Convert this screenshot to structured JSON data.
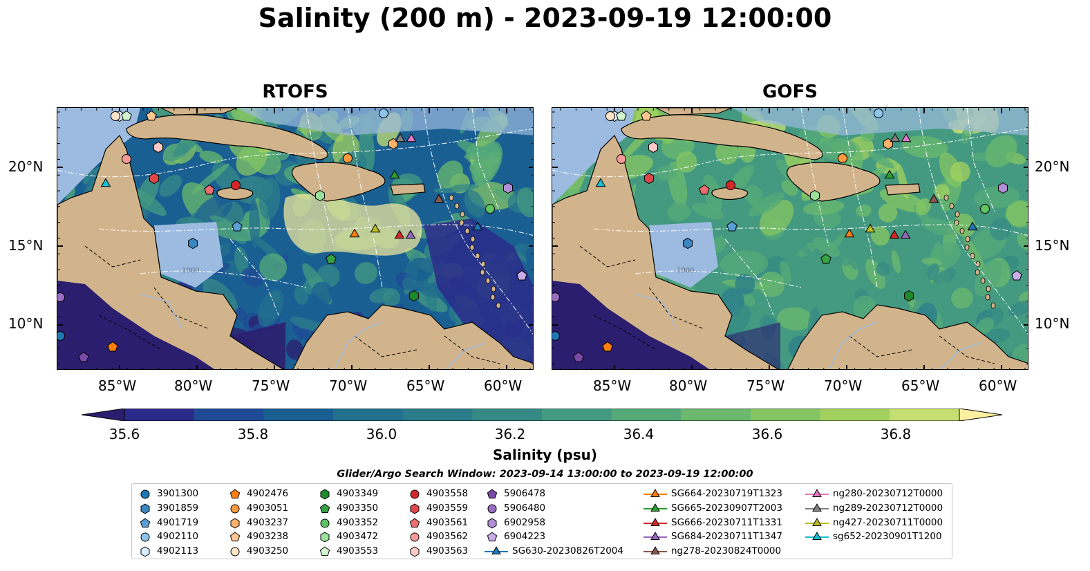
{
  "title": "Salinity (200 m) - 2023-09-19 12:00:00",
  "panels": [
    {
      "title": "RTOFS"
    },
    {
      "title": "GOFS"
    }
  ],
  "axes": {
    "x_ticks": [
      "85°W",
      "80°W",
      "75°W",
      "70°W",
      "65°W",
      "60°W"
    ],
    "y_ticks_left": [
      "20°N",
      "15°N",
      "10°N"
    ],
    "y_ticks_right": [
      "20°N",
      "15°N",
      "10°N"
    ]
  },
  "colorbar": {
    "ticks": [
      "35.6",
      "35.8",
      "36.0",
      "36.2",
      "36.4",
      "36.6",
      "36.8"
    ],
    "label": "Salinity (psu)",
    "colors": [
      "#2c1e6f",
      "#2a2a8a",
      "#1f4a95",
      "#1a5f92",
      "#236f8e",
      "#2b7c8b",
      "#358a86",
      "#449a80",
      "#56a978",
      "#6bb86e",
      "#85c563",
      "#a3d15f",
      "#c6df72",
      "#fbf0a0"
    ]
  },
  "search_window": "Glider/Argo Search Window: 2023-09-14 13:00:00 to 2023-09-19 12:00:00",
  "legend": {
    "columns": [
      [
        {
          "label": "3901300",
          "shape": "circle",
          "color": "#1f77b4"
        },
        {
          "label": "3901859",
          "shape": "hexagon",
          "color": "#3a86c1"
        },
        {
          "label": "4901719",
          "shape": "pentagon",
          "color": "#5a9fd4"
        },
        {
          "label": "4902110",
          "shape": "circle",
          "color": "#8cc4ec"
        },
        {
          "label": "4902113",
          "shape": "hexagon",
          "color": "#d9ecfb"
        }
      ],
      [
        {
          "label": "4902476",
          "shape": "pentagon",
          "color": "#ff7f0e"
        },
        {
          "label": "4903051",
          "shape": "circle",
          "color": "#ff9a3c"
        },
        {
          "label": "4903237",
          "shape": "hexagon",
          "color": "#ffb26b"
        },
        {
          "label": "4903238",
          "shape": "pentagon",
          "color": "#ffc690"
        },
        {
          "label": "4903250",
          "shape": "circle",
          "color": "#ffe3c8"
        }
      ],
      [
        {
          "label": "4903349",
          "shape": "hexagon",
          "color": "#1e8a2e"
        },
        {
          "label": "4903350",
          "shape": "pentagon",
          "color": "#36a244"
        },
        {
          "label": "4903352",
          "shape": "circle",
          "color": "#5ec462"
        },
        {
          "label": "4903472",
          "shape": "hexagon",
          "color": "#9be09a"
        },
        {
          "label": "4903553",
          "shape": "pentagon",
          "color": "#d3f5d0"
        }
      ],
      [
        {
          "label": "4903558",
          "shape": "circle",
          "color": "#d62728"
        },
        {
          "label": "4903559",
          "shape": "hexagon",
          "color": "#e0474a"
        },
        {
          "label": "4903561",
          "shape": "pentagon",
          "color": "#ea6d70"
        },
        {
          "label": "4903562",
          "shape": "circle",
          "color": "#f59a98"
        },
        {
          "label": "4903563",
          "shape": "hexagon",
          "color": "#fcc9c6"
        }
      ],
      [
        {
          "label": "5906478",
          "shape": "pentagon",
          "color": "#7b4aa8"
        },
        {
          "label": "5906480",
          "shape": "circle",
          "color": "#9a6cc4"
        },
        {
          "label": "6902958",
          "shape": "hexagon",
          "color": "#b18ed6"
        },
        {
          "label": "6904223",
          "shape": "pentagon",
          "color": "#c9adea"
        },
        {
          "label": "SG630-20230826T2004",
          "shape": "triangle",
          "color": "#1f77b4"
        }
      ],
      [
        {
          "label": "SG664-20230719T1323",
          "shape": "triangle",
          "color": "#ff7f0e"
        },
        {
          "label": "SG665-20230907T2003",
          "shape": "triangle",
          "color": "#2ca02c"
        },
        {
          "label": "SG666-20230711T1331",
          "shape": "triangle",
          "color": "#d62728"
        },
        {
          "label": "SG684-20230711T1347",
          "shape": "triangle",
          "color": "#9467bd"
        },
        {
          "label": "ng278-20230824T0000",
          "shape": "triangle",
          "color": "#8c564b"
        }
      ],
      [
        {
          "label": "ng280-20230712T0000",
          "shape": "triangle",
          "color": "#e377c2"
        },
        {
          "label": "ng289-20230712T0000",
          "shape": "triangle",
          "color": "#7f7f7f"
        },
        {
          "label": "ng427-20230711T0000",
          "shape": "triangle",
          "color": "#bcbd22"
        },
        {
          "label": "sg652-20230901T1200",
          "shape": "triangle",
          "color": "#17becf"
        }
      ]
    ]
  },
  "colors": {
    "land": "#d2b48c",
    "shelf": "#9dbbe0",
    "grid": "#ffffff"
  }
}
